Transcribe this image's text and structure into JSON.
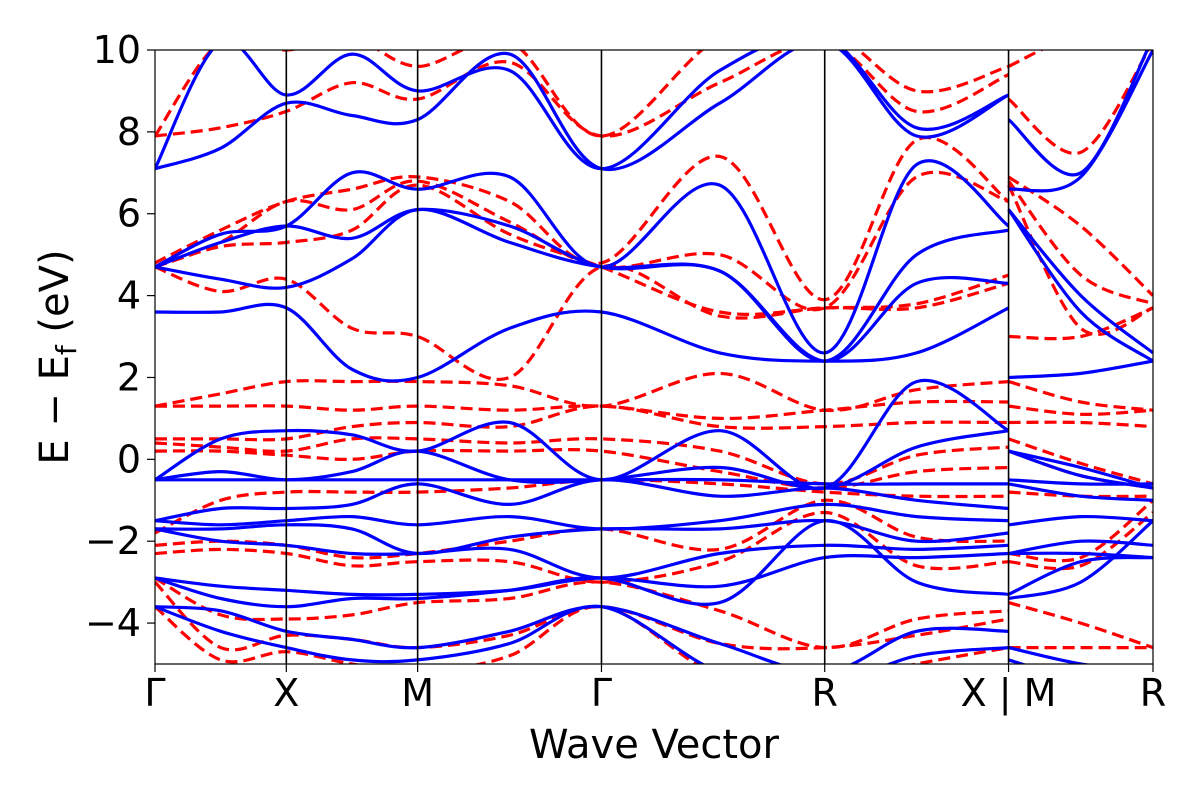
{
  "chart_data": {
    "type": "line",
    "xlabel": "Wave Vector",
    "ylabel": "E − E",
    "ylabel_sub": "f",
    "ylabel_unit": " (eV)",
    "ylim": [
      -5,
      10
    ],
    "yticks": [
      -4,
      -2,
      0,
      2,
      4,
      6,
      8,
      10
    ],
    "ytick_labels": [
      "−4",
      "−2",
      "0",
      "2",
      "4",
      "6",
      "8",
      "10"
    ],
    "xlim": [
      0,
      7.6
    ],
    "xticks": [
      0,
      1,
      2,
      3.4,
      5.1,
      6.5,
      7.6
    ],
    "xtick_labels": [
      "Γ",
      "X",
      "M",
      "Γ",
      "R",
      "X | M",
      "R"
    ],
    "grid": false,
    "colors": {
      "solid": "#0000ff",
      "dashed": "#ff0000"
    },
    "series": [
      {
        "style": "solid",
        "x": [
          0,
          0.5,
          1,
          1.5,
          2,
          2.7,
          3.4,
          4.3,
          5.1,
          5.8,
          6.5,
          6.5,
          7.05,
          7.6
        ],
        "y": [
          7.1,
          10.2,
          8.9,
          9.9,
          9.0,
          9.5,
          7.1,
          9.5,
          10.3,
          8.1,
          8.9,
          10.2,
          10.5,
          10.5
        ]
      },
      {
        "style": "solid",
        "x": [
          0,
          0.5,
          1,
          1.5,
          2,
          2.7,
          3.4,
          4.3,
          5.1,
          5.8,
          6.5,
          6.5,
          7.05,
          7.6
        ],
        "y": [
          7.1,
          7.6,
          8.7,
          8.4,
          8.3,
          9.9,
          7.1,
          8.7,
          10.2,
          7.9,
          8.9,
          8.3,
          7.0,
          10.3
        ]
      },
      {
        "style": "solid",
        "x": [
          0,
          0.5,
          1,
          1.5,
          2,
          2.7,
          3.4,
          4.3,
          5.1,
          5.8,
          6.5,
          6.5,
          7.05,
          7.6
        ],
        "y": [
          4.7,
          5.5,
          5.7,
          7.0,
          6.6,
          6.9,
          4.7,
          6.7,
          2.6,
          7.2,
          5.7,
          6.6,
          6.9,
          10.0
        ]
      },
      {
        "style": "solid",
        "x": [
          0,
          0.5,
          1,
          1.5,
          2,
          2.7,
          3.4,
          4.3,
          5.1,
          5.8,
          6.5,
          6.5,
          7.05,
          7.6
        ],
        "y": [
          4.7,
          5.3,
          5.7,
          5.4,
          6.1,
          5.7,
          4.7,
          4.6,
          2.4,
          5.0,
          5.6,
          6.1,
          4.0,
          2.6
        ]
      },
      {
        "style": "solid",
        "x": [
          0,
          0.5,
          1,
          1.5,
          2,
          2.7,
          3.4,
          4.3,
          5.1,
          5.8,
          6.5,
          6.5,
          7.05,
          7.6
        ],
        "y": [
          4.7,
          4.4,
          4.2,
          4.9,
          6.1,
          5.3,
          4.7,
          4.6,
          2.4,
          4.3,
          4.3,
          6.1,
          3.6,
          2.4
        ]
      },
      {
        "style": "solid",
        "x": [
          0,
          0.5,
          1,
          1.5,
          2,
          2.7,
          3.4,
          4.3,
          5.1,
          5.8,
          6.5,
          6.5,
          7.05,
          7.6
        ],
        "y": [
          3.6,
          3.6,
          3.7,
          2.2,
          2.0,
          3.2,
          3.6,
          2.6,
          2.4,
          2.6,
          3.7,
          2.0,
          2.1,
          2.4
        ]
      },
      {
        "style": "solid",
        "x": [
          0,
          0.5,
          1,
          1.5,
          2,
          2.7,
          3.4,
          4.3,
          5.1,
          5.8,
          6.5,
          6.5,
          7.05,
          7.6
        ],
        "y": [
          -0.5,
          0.5,
          0.7,
          0.6,
          0.2,
          0.9,
          -0.5,
          0.7,
          -0.7,
          1.9,
          0.7,
          0.2,
          -0.2,
          -0.7
        ]
      },
      {
        "style": "solid",
        "x": [
          0,
          0.5,
          1,
          1.5,
          2,
          2.7,
          3.4,
          4.3,
          5.1,
          5.8,
          6.5,
          6.5,
          7.05,
          7.6
        ],
        "y": [
          -0.5,
          -0.3,
          -0.5,
          -0.3,
          0.2,
          -0.5,
          -0.5,
          -0.2,
          -0.7,
          0.3,
          0.7,
          0.2,
          -0.4,
          -0.7
        ]
      },
      {
        "style": "solid",
        "x": [
          0,
          0.5,
          1,
          1.5,
          2,
          2.7,
          3.4,
          4.3,
          5.1,
          5.8,
          6.5,
          6.5,
          7.05,
          7.6
        ],
        "y": [
          -0.5,
          -0.5,
          -0.5,
          -0.5,
          -0.5,
          -0.5,
          -0.5,
          -0.5,
          -0.6,
          -0.6,
          -0.6,
          -0.5,
          -0.6,
          -0.6
        ]
      },
      {
        "style": "solid",
        "x": [
          0,
          0.5,
          1,
          1.5,
          2,
          2.7,
          3.4,
          4.3,
          5.1,
          5.8,
          6.5,
          6.5,
          7.05,
          7.6
        ],
        "y": [
          -1.5,
          -1.2,
          -1.2,
          -1.1,
          -0.6,
          -1.1,
          -0.5,
          -0.9,
          -0.7,
          -1.0,
          -1.2,
          -0.6,
          -0.9,
          -1.0
        ]
      },
      {
        "style": "solid",
        "x": [
          0,
          0.5,
          1,
          1.5,
          2,
          2.7,
          3.4,
          4.3,
          5.1,
          5.8,
          6.5,
          6.5,
          7.05,
          7.6
        ],
        "y": [
          -1.5,
          -1.6,
          -1.5,
          -1.4,
          -1.6,
          -1.4,
          -1.7,
          -1.5,
          -1.1,
          -1.4,
          -1.5,
          -1.6,
          -1.4,
          -1.5
        ]
      },
      {
        "style": "solid",
        "x": [
          0,
          0.5,
          1,
          1.5,
          2,
          2.7,
          3.4,
          4.3,
          5.1,
          5.8,
          6.5,
          6.5,
          7.05,
          7.6
        ],
        "y": [
          -1.7,
          -1.7,
          -1.6,
          -1.7,
          -2.3,
          -1.9,
          -1.7,
          -1.7,
          -1.5,
          -2.0,
          -1.8,
          -2.3,
          -2.0,
          -2.1
        ]
      },
      {
        "style": "solid",
        "x": [
          0,
          0.5,
          1,
          1.5,
          2,
          2.7,
          3.4,
          4.3,
          5.1,
          5.8,
          6.5,
          6.5,
          7.05,
          7.6
        ],
        "y": [
          -1.7,
          -2.0,
          -2.1,
          -2.3,
          -2.3,
          -2.2,
          -2.9,
          -2.3,
          -2.1,
          -2.2,
          -2.1,
          -2.3,
          -2.3,
          -2.4
        ]
      },
      {
        "style": "solid",
        "x": [
          0,
          0.5,
          1,
          1.5,
          2,
          2.7,
          3.4,
          4.3,
          5.1,
          5.8,
          6.5,
          6.5,
          7.05,
          7.6
        ],
        "y": [
          -2.9,
          -3.1,
          -3.2,
          -3.3,
          -3.3,
          -3.2,
          -2.9,
          -3.1,
          -2.4,
          -2.4,
          -2.3,
          -3.3,
          -2.5,
          -2.4
        ]
      },
      {
        "style": "solid",
        "x": [
          0,
          0.5,
          1,
          1.5,
          2,
          2.7,
          3.4,
          4.3,
          5.1,
          5.8,
          6.5,
          6.5,
          7.05,
          7.6
        ],
        "y": [
          -2.9,
          -3.4,
          -3.6,
          -3.4,
          -3.4,
          -3.2,
          -2.9,
          -3.5,
          -1.5,
          -3.0,
          -3.3,
          -3.4,
          -3.0,
          -1.5
        ]
      },
      {
        "style": "solid",
        "x": [
          0,
          0.5,
          1,
          1.5,
          2,
          2.7,
          3.4,
          4.3,
          5.1,
          5.8,
          6.5,
          6.5,
          7.05,
          7.6
        ],
        "y": [
          -3.6,
          -3.7,
          -4.2,
          -4.4,
          -4.6,
          -4.2,
          -3.6,
          -4.5,
          -5.2,
          -4.2,
          -4.2,
          -4.6,
          -5.0,
          -5.2
        ]
      },
      {
        "style": "solid",
        "x": [
          0,
          0.5,
          1,
          1.5,
          2,
          2.7,
          3.4,
          4.3,
          5.1,
          5.8,
          6.5,
          6.5,
          7.05,
          7.6
        ],
        "y": [
          -3.6,
          -4.2,
          -4.6,
          -4.9,
          -4.9,
          -4.5,
          -3.6,
          -5.2,
          -5.5,
          -4.8,
          -4.6,
          -4.9,
          -5.4,
          -5.5
        ]
      },
      {
        "style": "dashed",
        "x": [
          0,
          0.5,
          1,
          1.5,
          2,
          2.7,
          3.4,
          4.3,
          5.1,
          5.8,
          6.5,
          6.5,
          7.05,
          7.6
        ],
        "y": [
          7.9,
          10.2,
          10.0,
          10.3,
          9.6,
          10.2,
          7.9,
          10.3,
          10.5,
          9.0,
          9.6,
          9.6,
          10.4,
          10.5
        ]
      },
      {
        "style": "dashed",
        "x": [
          0,
          0.5,
          1,
          1.5,
          2,
          2.7,
          3.4,
          4.3,
          5.1,
          5.8,
          6.5,
          6.5,
          7.05,
          7.6
        ],
        "y": [
          7.9,
          8.1,
          8.5,
          9.2,
          8.8,
          9.7,
          7.9,
          9.2,
          10.2,
          8.5,
          9.4,
          8.8,
          7.5,
          10.2
        ]
      },
      {
        "style": "dashed",
        "x": [
          0,
          0.5,
          1,
          1.5,
          2,
          2.7,
          3.4,
          4.3,
          5.1,
          5.8,
          6.5,
          6.5,
          7.05,
          7.6
        ],
        "y": [
          4.8,
          5.6,
          6.3,
          6.6,
          6.9,
          6.3,
          4.8,
          7.4,
          3.9,
          7.8,
          6.3,
          6.9,
          5.7,
          4.0
        ]
      },
      {
        "style": "dashed",
        "x": [
          0,
          0.5,
          1,
          1.5,
          2,
          2.7,
          3.4,
          4.3,
          5.1,
          5.8,
          6.5,
          6.5,
          7.05,
          7.6
        ],
        "y": [
          4.7,
          5.3,
          6.3,
          6.1,
          6.8,
          5.8,
          4.7,
          5.0,
          3.7,
          6.9,
          6.3,
          6.8,
          4.5,
          3.8
        ]
      },
      {
        "style": "dashed",
        "x": [
          0,
          0.5,
          1,
          1.5,
          2,
          2.7,
          3.4,
          4.3,
          5.1,
          5.8,
          6.5,
          6.5,
          7.05,
          7.6
        ],
        "y": [
          4.7,
          5.2,
          5.3,
          5.6,
          6.7,
          5.5,
          4.7,
          3.6,
          3.7,
          3.8,
          4.5,
          6.7,
          3.2,
          3.7
        ]
      },
      {
        "style": "dashed",
        "x": [
          0,
          0.5,
          1,
          1.5,
          2,
          2.7,
          3.4,
          4.3,
          5.1,
          5.8,
          6.5,
          6.5,
          7.05,
          7.6
        ],
        "y": [
          4.7,
          4.1,
          4.4,
          3.2,
          3.0,
          2.0,
          4.7,
          3.5,
          3.7,
          3.7,
          4.3,
          3.0,
          3.0,
          3.7
        ]
      },
      {
        "style": "dashed",
        "x": [
          0,
          0.5,
          1,
          1.5,
          2,
          2.7,
          3.4,
          4.3,
          5.1,
          5.8,
          6.5,
          6.5,
          7.05,
          7.6
        ],
        "y": [
          1.3,
          1.6,
          1.9,
          1.9,
          1.9,
          1.8,
          1.3,
          2.1,
          1.2,
          1.7,
          1.9,
          1.9,
          1.4,
          1.2
        ]
      },
      {
        "style": "dashed",
        "x": [
          0,
          0.5,
          1,
          1.5,
          2,
          2.7,
          3.4,
          4.3,
          5.1,
          5.8,
          6.5,
          6.5,
          7.05,
          7.6
        ],
        "y": [
          1.3,
          1.3,
          1.3,
          1.2,
          1.3,
          1.2,
          1.3,
          1.0,
          1.2,
          1.4,
          1.4,
          1.3,
          1.1,
          1.2
        ]
      },
      {
        "style": "dashed",
        "x": [
          0,
          0.5,
          1,
          1.5,
          2,
          2.7,
          3.4,
          4.3,
          5.1,
          5.8,
          6.5,
          6.5,
          7.05,
          7.6
        ],
        "y": [
          0.5,
          0.5,
          0.5,
          0.8,
          0.9,
          0.8,
          1.3,
          0.8,
          0.8,
          0.9,
          0.9,
          0.9,
          0.9,
          0.8
        ]
      },
      {
        "style": "dashed",
        "x": [
          0,
          0.5,
          1,
          1.5,
          2,
          2.7,
          3.4,
          4.3,
          5.1,
          5.8,
          6.5,
          6.5,
          7.05,
          7.6
        ],
        "y": [
          0.4,
          0.3,
          0.2,
          0.5,
          0.5,
          0.4,
          0.5,
          0.2,
          -0.6,
          0.1,
          0.3,
          0.5,
          -0.1,
          -0.6
        ]
      },
      {
        "style": "dashed",
        "x": [
          0,
          0.5,
          1,
          1.5,
          2,
          2.7,
          3.4,
          4.3,
          5.1,
          5.8,
          6.5,
          6.5,
          7.05,
          7.6
        ],
        "y": [
          0.2,
          0.2,
          0.1,
          0.0,
          0.2,
          0.2,
          0.2,
          -0.3,
          -0.7,
          -0.3,
          -0.2,
          0.2,
          -0.4,
          -0.7
        ]
      },
      {
        "style": "dashed",
        "x": [
          0,
          0.5,
          1,
          1.5,
          2,
          2.7,
          3.4,
          4.3,
          5.1,
          5.8,
          6.5,
          6.5,
          7.05,
          7.6
        ],
        "y": [
          -1.8,
          -1.0,
          -0.8,
          -0.8,
          -0.8,
          -0.7,
          -0.5,
          -0.6,
          -0.8,
          -0.9,
          -0.9,
          -0.8,
          -0.9,
          -0.9
        ]
      },
      {
        "style": "dashed",
        "x": [
          0,
          0.5,
          1,
          1.5,
          2,
          2.7,
          3.4,
          4.3,
          5.1,
          5.8,
          6.5,
          6.5,
          7.05,
          7.6
        ],
        "y": [
          -2.1,
          -2.0,
          -2.1,
          -2.4,
          -2.3,
          -2.0,
          -1.7,
          -2.2,
          -1.0,
          -1.9,
          -2.0,
          -2.3,
          -2.4,
          -1.0
        ]
      },
      {
        "style": "dashed",
        "x": [
          0,
          0.5,
          1,
          1.5,
          2,
          2.7,
          3.4,
          4.3,
          5.1,
          5.8,
          6.5,
          6.5,
          7.05,
          7.6
        ],
        "y": [
          -2.3,
          -2.2,
          -2.3,
          -2.6,
          -2.5,
          -2.5,
          -3.0,
          -2.5,
          -1.3,
          -2.6,
          -2.5,
          -2.5,
          -2.6,
          -1.3
        ]
      },
      {
        "style": "dashed",
        "x": [
          0,
          0.5,
          1,
          1.5,
          2,
          2.7,
          3.4,
          4.3,
          5.1,
          5.8,
          6.5,
          6.5,
          7.05,
          7.6
        ],
        "y": [
          -2.9,
          -3.8,
          -3.9,
          -3.8,
          -3.5,
          -3.4,
          -3.0,
          -3.7,
          -4.6,
          -3.9,
          -3.7,
          -3.5,
          -4.0,
          -4.6
        ]
      },
      {
        "style": "dashed",
        "x": [
          0,
          0.5,
          1,
          1.5,
          2,
          2.7,
          3.4,
          4.3,
          5.1,
          5.8,
          6.5,
          6.5,
          7.05,
          7.6
        ],
        "y": [
          -3.0,
          -4.6,
          -4.3,
          -4.4,
          -4.6,
          -4.3,
          -3.6,
          -4.5,
          -4.6,
          -4.3,
          -3.9,
          -4.6,
          -4.6,
          -4.6
        ]
      },
      {
        "style": "dashed",
        "x": [
          0,
          0.5,
          1,
          1.5,
          2,
          2.7,
          3.4,
          4.3,
          5.1,
          5.8,
          6.5,
          6.5,
          7.05,
          7.6
        ],
        "y": [
          -3.6,
          -4.9,
          -4.7,
          -5.0,
          -5.2,
          -4.8,
          -3.6,
          -5.3,
          -5.5,
          -5.0,
          -4.6,
          -5.2,
          -5.4,
          -5.5
        ]
      }
    ]
  }
}
